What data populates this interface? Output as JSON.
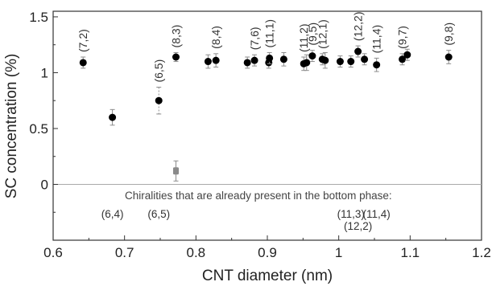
{
  "chart_data": {
    "type": "scatter",
    "xlabel": "CNT diameter (nm)",
    "ylabel": "SC concentration (%)",
    "xlim": [
      0.6,
      1.2
    ],
    "ylim": [
      -0.5,
      1.55
    ],
    "xticks": [
      "0.6",
      "0.7",
      "0.8",
      "0.9",
      "1",
      "1.1",
      "1.2"
    ],
    "yticks": [
      "0",
      "0.5",
      "1",
      "1.5"
    ],
    "grid": false,
    "series": [
      {
        "points": [
          {
            "x": 0.642,
            "y": 1.09,
            "err": 0.05
          },
          {
            "x": 0.683,
            "y": 0.6,
            "err": 0.07
          },
          {
            "x": 0.748,
            "y": 0.75,
            "err": 0.12
          },
          {
            "x": 0.772,
            "y": 1.14,
            "err": 0.04
          },
          {
            "x": 0.817,
            "y": 1.1,
            "err": 0.06
          },
          {
            "x": 0.828,
            "y": 1.11,
            "err": 0.06
          },
          {
            "x": 0.872,
            "y": 1.09,
            "err": 0.05
          },
          {
            "x": 0.882,
            "y": 1.11,
            "err": 0.05
          },
          {
            "x": 0.902,
            "y": 1.09,
            "err": 0.05
          },
          {
            "x": 0.903,
            "y": 1.13,
            "err": 0.05
          },
          {
            "x": 0.923,
            "y": 1.12,
            "err": 0.06
          },
          {
            "x": 0.951,
            "y": 1.08,
            "err": 0.06
          },
          {
            "x": 0.955,
            "y": 1.09,
            "err": 0.07
          },
          {
            "x": 0.963,
            "y": 1.15,
            "err": 0.05
          },
          {
            "x": 0.977,
            "y": 1.12,
            "err": 0.05
          },
          {
            "x": 0.981,
            "y": 1.11,
            "err": 0.07
          },
          {
            "x": 1.002,
            "y": 1.1,
            "err": 0.05
          },
          {
            "x": 1.017,
            "y": 1.1,
            "err": 0.05
          },
          {
            "x": 1.027,
            "y": 1.19,
            "err": 0.05
          },
          {
            "x": 1.036,
            "y": 1.12,
            "err": 0.05
          },
          {
            "x": 1.053,
            "y": 1.07,
            "err": 0.06
          },
          {
            "x": 1.089,
            "y": 1.12,
            "err": 0.05
          },
          {
            "x": 1.096,
            "y": 1.16,
            "err": 0.05
          },
          {
            "x": 1.154,
            "y": 1.14,
            "err": 0.06
          }
        ]
      },
      {
        "points": [
          {
            "x": 0.772,
            "y": 0.12,
            "err": 0.09
          }
        ]
      }
    ],
    "point_labels": [
      {
        "text": "(7,2)",
        "x": 0.642
      },
      {
        "text": "(6,5)",
        "x": 0.748
      },
      {
        "text": "(8,3)",
        "x": 0.772
      },
      {
        "text": "(8,4)",
        "x": 0.828
      },
      {
        "text": "(7,6)",
        "x": 0.882
      },
      {
        "text": "(11,1)",
        "x": 0.903
      },
      {
        "text": "(11,2)",
        "x": 0.951
      },
      {
        "text": "(9,5)",
        "x": 0.963
      },
      {
        "text": "(12,1)",
        "x": 0.977
      },
      {
        "text": "(12,2)",
        "x": 1.027
      },
      {
        "text": "(11,4)",
        "x": 1.053
      },
      {
        "text": "(9,7)",
        "x": 1.089
      },
      {
        "text": "(9,8)",
        "x": 1.154
      }
    ],
    "zero_line": 0,
    "annotation": "Chiralities that are already present in the bottom phase:",
    "bottom_phase_labels": [
      {
        "text": "(6,4)",
        "x": 0.683
      },
      {
        "text": "(6,5)",
        "x": 0.748
      },
      {
        "text": "(11,3)",
        "x": 1.017
      },
      {
        "text": "(11,4)",
        "x": 1.053
      },
      {
        "text": "(12,2)",
        "x": 1.027
      }
    ]
  },
  "colors": {
    "point": "#000000",
    "bottom_phase_point": "#8a8a8a",
    "error_bar": "#8c8c8c",
    "zero_line": "#a9a9a9"
  }
}
